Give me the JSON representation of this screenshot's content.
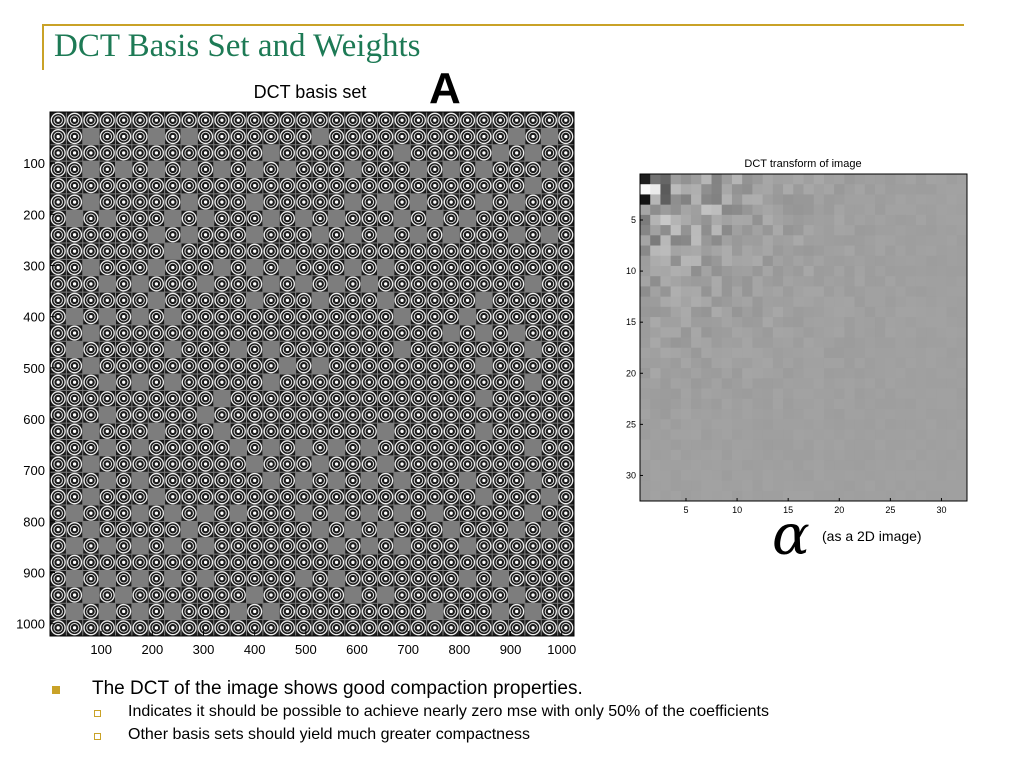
{
  "slide": {
    "title": "DCT Basis Set and Weights",
    "figure_label": "A",
    "alpha_symbol": "α",
    "alpha_note": "(as a 2D image)",
    "accent_color": "#c9a227",
    "title_color": "#1d7a55"
  },
  "bullets": [
    {
      "text": "The DCT of the image shows good compaction properties.",
      "sub": [
        "Indicates it should be possible to achieve nearly zero mse with only 50% of the coefficients",
        "Other basis sets should yield much greater compactness"
      ]
    }
  ],
  "chart_data": [
    {
      "type": "heatmap",
      "title": "DCT basis set",
      "xlabel": "",
      "ylabel": "",
      "x_ticks": [
        100,
        200,
        300,
        400,
        500,
        600,
        700,
        800,
        900,
        1000
      ],
      "y_ticks": [
        100,
        200,
        300,
        400,
        500,
        600,
        700,
        800,
        900,
        1000
      ],
      "xlim": [
        0,
        1024
      ],
      "ylim": [
        0,
        1024
      ],
      "grid_blocks": 32,
      "colormap": "gray"
    },
    {
      "type": "heatmap",
      "title": "DCT transform of image",
      "xlabel": "",
      "ylabel": "",
      "x_ticks": [
        5,
        10,
        15,
        20,
        25,
        30
      ],
      "y_ticks": [
        5,
        10,
        15,
        20,
        25,
        30
      ],
      "xlim": [
        0.5,
        32.5
      ],
      "ylim": [
        0.5,
        32.5
      ],
      "grid_cells": 32,
      "colormap": "gray",
      "note": "energy concentrated in top-left (low-frequency) coefficients"
    }
  ]
}
